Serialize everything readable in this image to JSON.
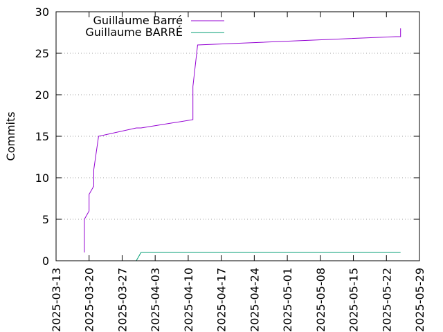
{
  "chart_data": {
    "type": "line",
    "title": "",
    "xlabel": "",
    "ylabel": "Commits",
    "ylim": [
      0,
      30
    ],
    "yticks": [
      0,
      5,
      10,
      15,
      20,
      25,
      30
    ],
    "xlim": [
      "2025-03-13",
      "2025-05-29"
    ],
    "xticks": [
      "2025-03-13",
      "2025-03-20",
      "2025-03-27",
      "2025-04-03",
      "2025-04-10",
      "2025-04-17",
      "2025-04-24",
      "2025-05-01",
      "2025-05-08",
      "2025-05-15",
      "2025-05-22",
      "2025-05-29"
    ],
    "grid": "horizontal dotted",
    "legend_position": "top-left",
    "series": [
      {
        "name": "Guillaume Barré",
        "color": "#9400d3",
        "points": [
          [
            "2025-03-19",
            1
          ],
          [
            "2025-03-19",
            5
          ],
          [
            "2025-03-20",
            6
          ],
          [
            "2025-03-20",
            8
          ],
          [
            "2025-03-21",
            9
          ],
          [
            "2025-03-21",
            11
          ],
          [
            "2025-03-22",
            15
          ],
          [
            "2025-03-30",
            16
          ],
          [
            "2025-03-31",
            16
          ],
          [
            "2025-04-11",
            17
          ],
          [
            "2025-04-11",
            21
          ],
          [
            "2025-04-12",
            26
          ],
          [
            "2025-05-24",
            27
          ],
          [
            "2025-05-25",
            27
          ],
          [
            "2025-05-25",
            28
          ]
        ]
      },
      {
        "name": "Guillaume BARRÉ",
        "color": "#009e73",
        "points": [
          [
            "2025-03-30",
            0
          ],
          [
            "2025-03-31",
            1
          ],
          [
            "2025-05-25",
            1
          ]
        ]
      }
    ]
  }
}
